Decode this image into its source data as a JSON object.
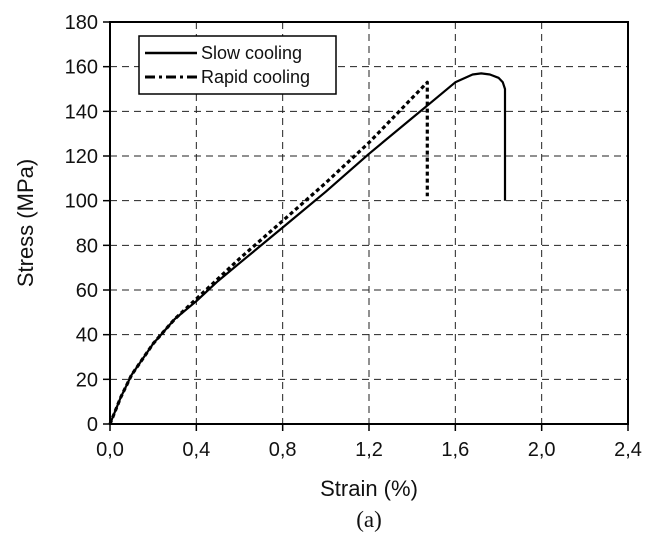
{
  "chart_data": {
    "type": "line",
    "caption": "(a)",
    "xlabel": "Strain (%)",
    "ylabel": "Stress (MPa)",
    "xlim": [
      0,
      2.4
    ],
    "ylim": [
      0,
      180
    ],
    "x_ticks": [
      "0,0",
      "0,4",
      "0,8",
      "1,2",
      "1,6",
      "2,0",
      "2,4"
    ],
    "y_ticks": [
      "0",
      "20",
      "40",
      "60",
      "80",
      "100",
      "120",
      "140",
      "160",
      "180"
    ],
    "grid": true,
    "legend_position": "top-left",
    "series": [
      {
        "name": "Slow cooling",
        "style": "solid",
        "x": [
          0,
          0.05,
          0.1,
          0.2,
          0.3,
          0.4,
          0.5,
          0.6,
          0.8,
          1.0,
          1.2,
          1.4,
          1.5,
          1.6,
          1.68,
          1.72,
          1.76,
          1.8,
          1.82,
          1.83,
          1.83
        ],
        "y": [
          0,
          12,
          22,
          36,
          47,
          55,
          64,
          72,
          88,
          104,
          121,
          137,
          145,
          153,
          156.5,
          157,
          156.5,
          155,
          153,
          150,
          100
        ]
      },
      {
        "name": "Rapid cooling",
        "style": "dash-dot",
        "x": [
          0,
          0.05,
          0.1,
          0.2,
          0.3,
          0.4,
          0.5,
          0.6,
          0.8,
          1.0,
          1.2,
          1.3,
          1.4,
          1.45,
          1.47,
          1.47
        ],
        "y": [
          0,
          12,
          22,
          36,
          47,
          56,
          65,
          74,
          91,
          108,
          126,
          136,
          146,
          151,
          153,
          102
        ]
      }
    ]
  }
}
